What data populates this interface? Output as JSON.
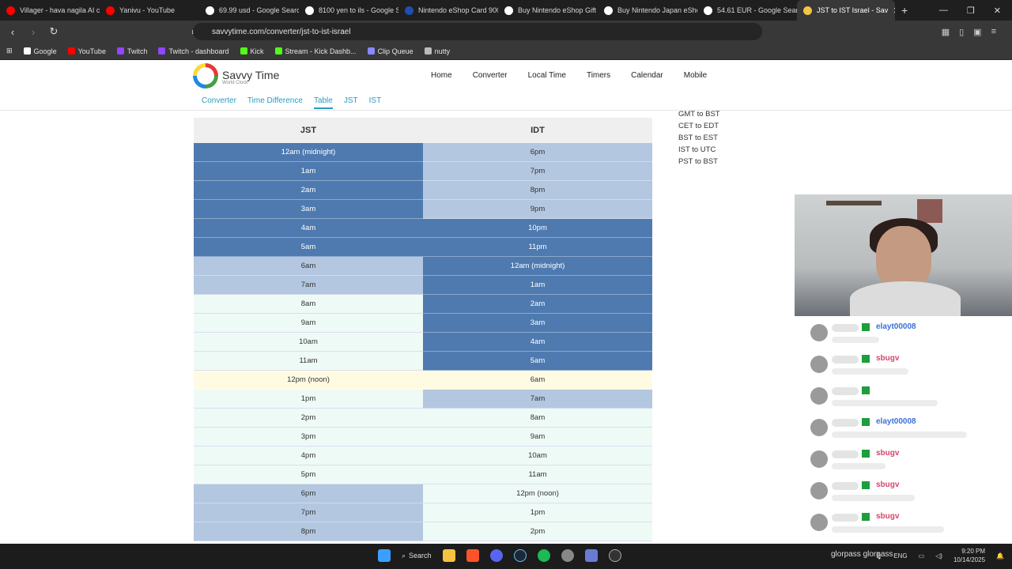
{
  "browser": {
    "tabs": [
      {
        "title": "Villager - hava nagila AI co",
        "color": "#ff0000"
      },
      {
        "title": "Yanivu - YouTube",
        "color": "#ff0000"
      },
      {
        "title": "69.99 usd - Google Search",
        "color": "#ffffff"
      },
      {
        "title": "8100 yen to ils - Google S",
        "color": "#ffffff"
      },
      {
        "title": "Nintendo eShop Card 900",
        "color": "#1f4fb0"
      },
      {
        "title": "Buy Nintendo eShop Gift C",
        "color": "#ffffff"
      },
      {
        "title": "Buy Nintendo Japan eSho",
        "color": "#ffffff"
      },
      {
        "title": "54.61 EUR - Google Search",
        "color": "#ffffff"
      },
      {
        "title": "JST to IST Israel - Sav",
        "color": "#f4c542"
      }
    ],
    "url": "savvytime.com/converter/jst-to-ist-israel",
    "bookmarks": [
      {
        "label": "Google",
        "color": "#ffffff"
      },
      {
        "label": "YouTube",
        "color": "#ff0000"
      },
      {
        "label": "Twitch",
        "color": "#9146ff"
      },
      {
        "label": "Twitch - dashboard",
        "color": "#9146ff"
      },
      {
        "label": "Kick",
        "color": "#53fc18"
      },
      {
        "label": "Stream - Kick Dashb...",
        "color": "#53fc18"
      },
      {
        "label": "Clip Queue",
        "color": "#8888ff"
      },
      {
        "label": "nutty",
        "color": "#bbbbbb"
      }
    ]
  },
  "site": {
    "brand": "Savvy Time",
    "brand_sub": "World Clock",
    "nav": [
      "Home",
      "Converter",
      "Local Time",
      "Timers",
      "Calendar",
      "Mobile"
    ],
    "subnav": [
      "Converter",
      "Time Difference",
      "Table",
      "JST",
      "IST"
    ],
    "subnav_current": "Table"
  },
  "table": {
    "headers": [
      "JST",
      "IDT"
    ],
    "rows": [
      {
        "jst": "12am (midnight)",
        "idt": "6pm",
        "jst_style": "night",
        "idt_style": "eve"
      },
      {
        "jst": "1am",
        "idt": "7pm",
        "jst_style": "night",
        "idt_style": "eve"
      },
      {
        "jst": "2am",
        "idt": "8pm",
        "jst_style": "night",
        "idt_style": "eve"
      },
      {
        "jst": "3am",
        "idt": "9pm",
        "jst_style": "night",
        "idt_style": "eve"
      },
      {
        "jst": "4am",
        "idt": "10pm",
        "jst_style": "night",
        "idt_style": "night"
      },
      {
        "jst": "5am",
        "idt": "11pm",
        "jst_style": "night",
        "idt_style": "night"
      },
      {
        "jst": "6am",
        "idt": "12am (midnight)",
        "jst_style": "eve",
        "idt_style": "night"
      },
      {
        "jst": "7am",
        "idt": "1am",
        "jst_style": "eve",
        "idt_style": "night"
      },
      {
        "jst": "8am",
        "idt": "2am",
        "jst_style": "day",
        "idt_style": "night"
      },
      {
        "jst": "9am",
        "idt": "3am",
        "jst_style": "day",
        "idt_style": "night"
      },
      {
        "jst": "10am",
        "idt": "4am",
        "jst_style": "day",
        "idt_style": "night"
      },
      {
        "jst": "11am",
        "idt": "5am",
        "jst_style": "day",
        "idt_style": "night"
      },
      {
        "jst": "12pm (noon)",
        "idt": "6am",
        "jst_style": "noon",
        "idt_style": "noon"
      },
      {
        "jst": "1pm",
        "idt": "7am",
        "jst_style": "day",
        "idt_style": "eve"
      },
      {
        "jst": "2pm",
        "idt": "8am",
        "jst_style": "day",
        "idt_style": "day"
      },
      {
        "jst": "3pm",
        "idt": "9am",
        "jst_style": "day",
        "idt_style": "day"
      },
      {
        "jst": "4pm",
        "idt": "10am",
        "jst_style": "day",
        "idt_style": "day"
      },
      {
        "jst": "5pm",
        "idt": "11am",
        "jst_style": "day",
        "idt_style": "day"
      },
      {
        "jst": "6pm",
        "idt": "12pm (noon)",
        "jst_style": "eve",
        "idt_style": "day"
      },
      {
        "jst": "7pm",
        "idt": "1pm",
        "jst_style": "eve",
        "idt_style": "day"
      },
      {
        "jst": "8pm",
        "idt": "2pm",
        "jst_style": "eve",
        "idt_style": "day"
      }
    ]
  },
  "side_links": [
    "GMT to BST",
    "CET to EDT",
    "BST to EST",
    "IST to UTC",
    "PST to BST"
  ],
  "chat": [
    {
      "user": "elayt00008",
      "color": "#3b6fd6"
    },
    {
      "user": "sbugv",
      "color": "#d6456b"
    },
    {
      "user": "",
      "color": "#1e9e3c"
    },
    {
      "user": "elayt00008",
      "color": "#3b6fd6"
    },
    {
      "user": "sbugv",
      "color": "#d6456b"
    },
    {
      "user": "sbugv",
      "color": "#d6456b"
    },
    {
      "user": "sbugv",
      "color": "#d6456b"
    }
  ],
  "chat_footer": "glorpass glorpass",
  "taskbar": {
    "search_label": "Search",
    "lang": "ENG",
    "time": "9:20 PM",
    "date": "10/14/2025"
  }
}
